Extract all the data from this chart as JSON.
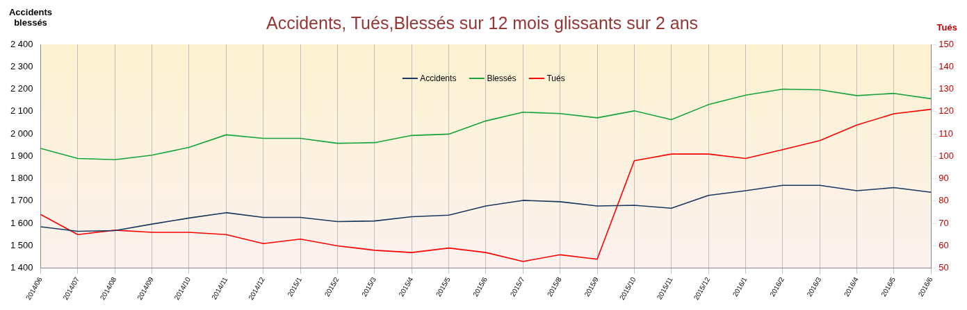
{
  "chart_data": {
    "type": "line",
    "title": "Accidents, Tués,Blessés sur 12 mois glissants sur 2 ans",
    "ylabel": "Accidents blessés",
    "y2label": "Tués",
    "categories": [
      "2014/06",
      "2014/07",
      "2014/08",
      "2014/09",
      "2014/10",
      "2014/11",
      "2014/12",
      "2015/1",
      "2015/2",
      "2015/3",
      "2015/4",
      "2015/5",
      "2015/6",
      "2015/7",
      "2015/8",
      "2015/9",
      "2015/10",
      "2015/11",
      "2015/12",
      "2016/1",
      "2016/2",
      "2016/3",
      "2016/4",
      "2016/5",
      "2016/6"
    ],
    "series": [
      {
        "name": "Accidents",
        "color": "#17375e",
        "values": [
          1585,
          1565,
          1568,
          1597,
          1624,
          1648,
          1627,
          1627,
          1608,
          1611,
          1630,
          1637,
          1678,
          1703,
          1697,
          1678,
          1681,
          1668,
          1725,
          1746,
          1770,
          1770,
          1746,
          1760,
          1739
        ]
      },
      {
        "name": "Blessés",
        "color": "#14a33c",
        "values": [
          1935,
          1890,
          1885,
          1905,
          1940,
          1996,
          1980,
          1980,
          1958,
          1961,
          1993,
          1999,
          2058,
          2097,
          2091,
          2072,
          2103,
          2064,
          2131,
          2173,
          2200,
          2197,
          2171,
          2181,
          2157
        ]
      },
      {
        "name": "Tués",
        "color": "#ff0000",
        "axis": "y2",
        "values": [
          74,
          65,
          67,
          66,
          66,
          65,
          61,
          63,
          60,
          58,
          57,
          59,
          57,
          53,
          56,
          54,
          98,
          101,
          101,
          99,
          103,
          107,
          114,
          119,
          121
        ]
      }
    ],
    "ylim": [
      1400,
      2400
    ],
    "yticks": [
      {
        "value": 1400,
        "label": "1 400"
      },
      {
        "value": 1500,
        "label": "1 500"
      },
      {
        "value": 1600,
        "label": "1 600"
      },
      {
        "value": 1700,
        "label": "1 700"
      },
      {
        "value": 1800,
        "label": "1 800"
      },
      {
        "value": 1900,
        "label": "1 900"
      },
      {
        "value": 2000,
        "label": "2 000"
      },
      {
        "value": 2100,
        "label": "2 100"
      },
      {
        "value": 2200,
        "label": "2 200"
      },
      {
        "value": 2300,
        "label": "2 300"
      },
      {
        "value": 2400,
        "label": "2 400"
      }
    ],
    "y2lim": [
      50,
      150
    ],
    "y2ticks": [
      50,
      60,
      70,
      80,
      90,
      100,
      110,
      120,
      130,
      140,
      150
    ],
    "grid": "x",
    "legend": "top",
    "marker": "none",
    "line_style": "solid"
  }
}
